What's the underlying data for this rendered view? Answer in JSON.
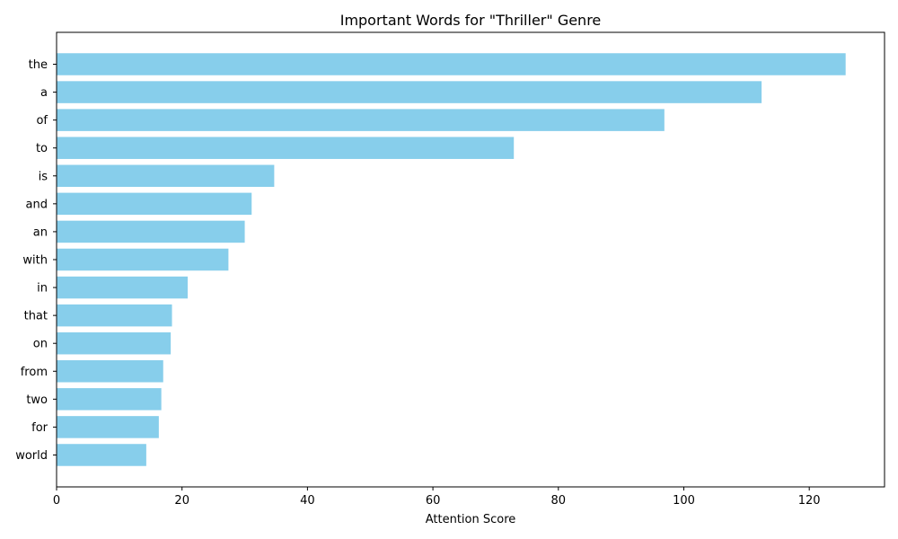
{
  "chart_data": {
    "type": "bar",
    "orientation": "horizontal",
    "title": "Important Words for \"Thriller\" Genre",
    "xlabel": "Attention Score",
    "ylabel": "",
    "categories": [
      "the",
      "a",
      "of",
      "to",
      "is",
      "and",
      "an",
      "with",
      "in",
      "that",
      "on",
      "from",
      "two",
      "for",
      "world"
    ],
    "values": [
      125.8,
      112.4,
      96.9,
      72.9,
      34.7,
      31.1,
      30.0,
      27.4,
      20.9,
      18.4,
      18.2,
      17.0,
      16.7,
      16.3,
      14.3
    ],
    "xlim": [
      0,
      132
    ],
    "xticks": [
      0,
      20,
      40,
      60,
      80,
      100,
      120
    ],
    "grid": false,
    "legend": "none",
    "colors": {
      "bar": "#87CEEB",
      "axis": "#000000",
      "text": "#000000",
      "background": "#ffffff"
    }
  }
}
